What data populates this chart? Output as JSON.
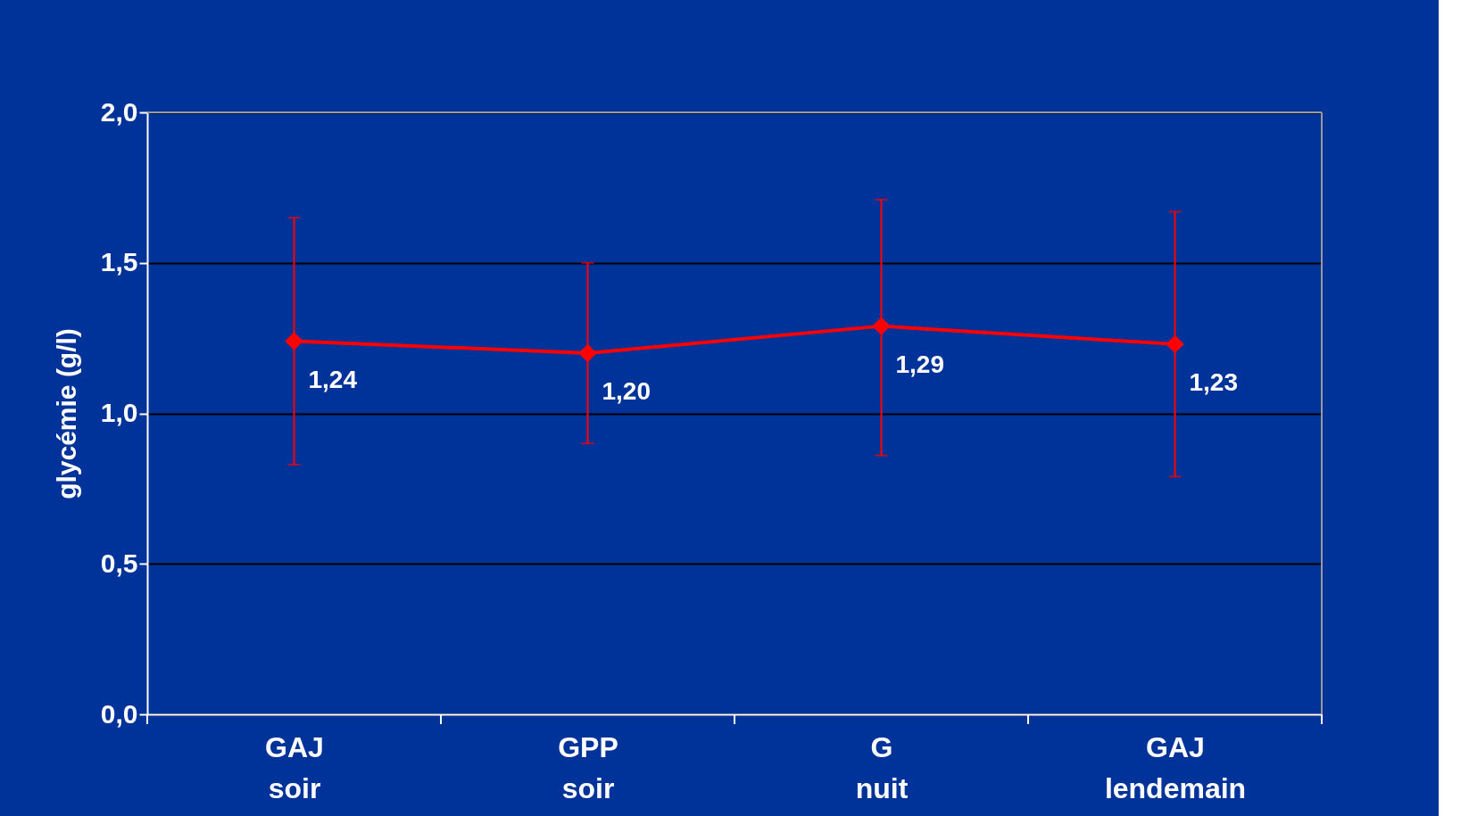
{
  "chart_data": {
    "type": "line",
    "ylabel": "glycémie (g/l)",
    "categories": [
      "GAJ\nsoir",
      "GPP\nsoir",
      "G\nnuit",
      "GAJ\nlendemain"
    ],
    "series": [
      {
        "color": "#ff0000",
        "values": [
          1.24,
          1.2,
          1.29,
          1.23
        ],
        "errors": [
          [
            0.83,
            1.65
          ],
          [
            0.9,
            1.5
          ],
          [
            0.86,
            1.71
          ],
          [
            0.79,
            1.67
          ]
        ],
        "value_labels": [
          "1,24",
          "1,20",
          "1,29",
          "1,23"
        ]
      }
    ],
    "ylim": [
      0,
      2
    ],
    "yticks": [
      {
        "value": 0,
        "label": "0,0"
      },
      {
        "value": 0.5,
        "label": "0,5"
      },
      {
        "value": 1,
        "label": "1,0"
      },
      {
        "value": 1.5,
        "label": "1,5"
      },
      {
        "value": 2,
        "label": "2,0"
      }
    ],
    "grid": "y",
    "marker": "diamond",
    "line_style": "solid"
  }
}
